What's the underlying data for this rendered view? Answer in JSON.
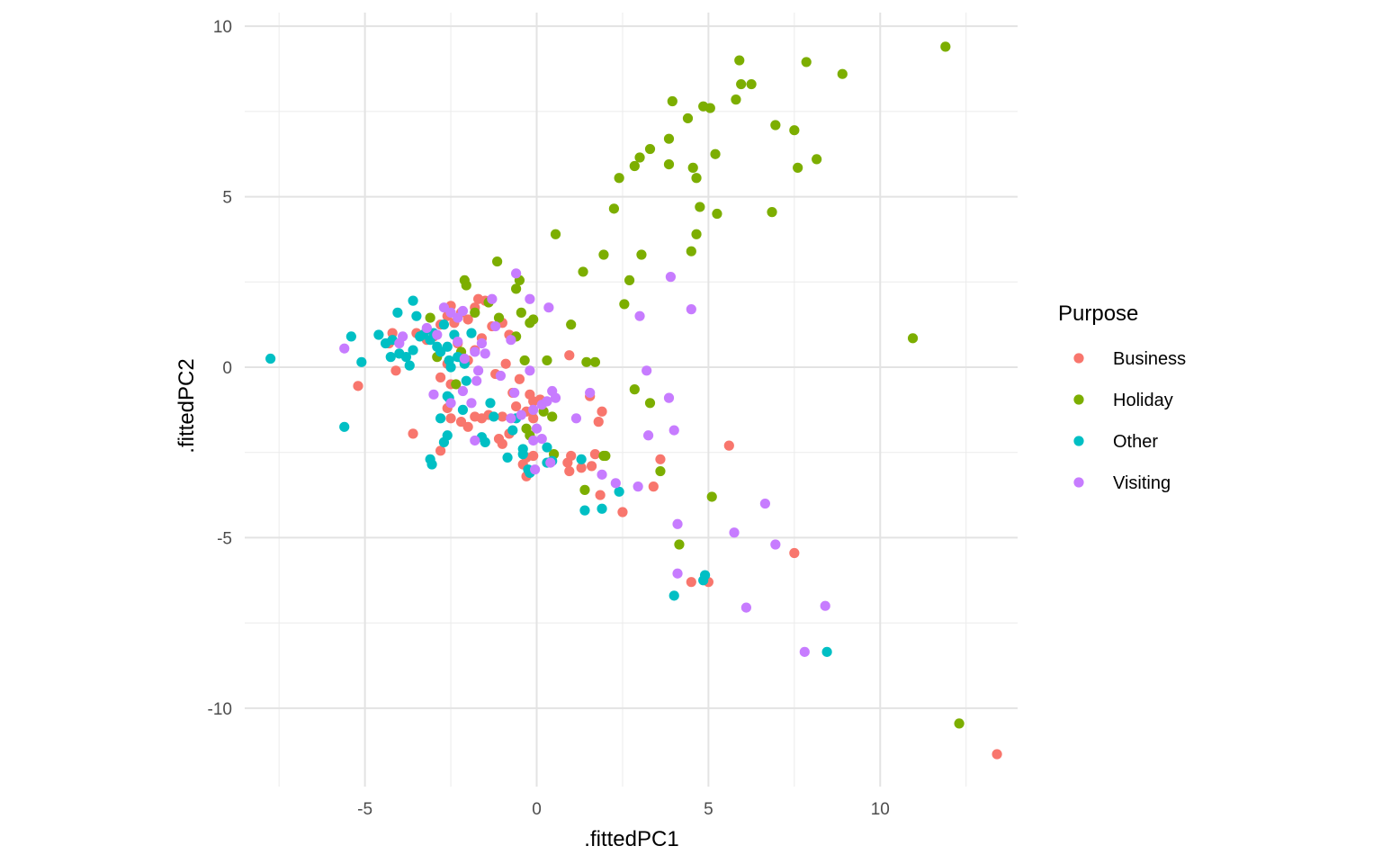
{
  "chart_data": {
    "type": "scatter",
    "xlabel": ".fittedPC1",
    "ylabel": ".fittedPC2",
    "xlim": [
      -8.5,
      14
    ],
    "ylim": [
      -12.3,
      10.4
    ],
    "x_ticks": [
      -5,
      0,
      5,
      10
    ],
    "y_ticks": [
      10,
      5,
      0,
      -5,
      -10
    ],
    "x_tick_labels": [
      "-5",
      "0",
      "5",
      "10"
    ],
    "y_tick_labels": [
      "10",
      "5",
      "0",
      "-5",
      "-10"
    ],
    "grid": true,
    "legend": {
      "title": "Purpose",
      "placement": "right"
    },
    "series": [
      {
        "name": "Business",
        "color": "#F8766D",
        "points": [
          [
            -5.2,
            -0.55
          ],
          [
            -3.6,
            -1.95
          ],
          [
            -4.2,
            1.0
          ],
          [
            -4.1,
            -0.1
          ],
          [
            -4.3,
            0.7
          ],
          [
            -3.5,
            1.0
          ],
          [
            -3.2,
            0.8
          ],
          [
            -3.0,
            0.9
          ],
          [
            -2.8,
            1.25
          ],
          [
            -2.6,
            1.5
          ],
          [
            -2.5,
            1.8
          ],
          [
            -2.4,
            1.3
          ],
          [
            -2.2,
            1.6
          ],
          [
            -2.0,
            1.4
          ],
          [
            -1.8,
            1.75
          ],
          [
            -1.7,
            2.0
          ],
          [
            -1.5,
            1.95
          ],
          [
            -2.3,
            0.7
          ],
          [
            -2.0,
            0.2
          ],
          [
            -1.8,
            0.5
          ],
          [
            -1.6,
            0.85
          ],
          [
            -1.3,
            1.2
          ],
          [
            -1.0,
            1.3
          ],
          [
            -0.8,
            0.95
          ],
          [
            -0.9,
            0.1
          ],
          [
            -1.2,
            -0.2
          ],
          [
            -0.7,
            -0.75
          ],
          [
            -0.5,
            -0.35
          ],
          [
            -0.2,
            -0.8
          ],
          [
            -0.1,
            -1.0
          ],
          [
            0.1,
            -0.95
          ],
          [
            -0.3,
            -1.3
          ],
          [
            -0.1,
            -1.5
          ],
          [
            -0.6,
            -1.15
          ],
          [
            -1.0,
            -1.45
          ],
          [
            -1.4,
            -1.4
          ],
          [
            -1.6,
            -1.5
          ],
          [
            -1.8,
            -1.45
          ],
          [
            -2.0,
            -1.75
          ],
          [
            -2.2,
            -1.6
          ],
          [
            -2.5,
            -1.5
          ],
          [
            -2.6,
            -1.2
          ],
          [
            -2.8,
            -0.3
          ],
          [
            -2.6,
            0.1
          ],
          [
            -2.5,
            -0.5
          ],
          [
            -1.1,
            -2.1
          ],
          [
            -0.8,
            -1.95
          ],
          [
            -1.0,
            -2.25
          ],
          [
            -0.3,
            -2.65
          ],
          [
            -0.4,
            -2.85
          ],
          [
            -0.3,
            -3.2
          ],
          [
            -0.1,
            -2.6
          ],
          [
            0.9,
            -2.8
          ],
          [
            1.0,
            -2.6
          ],
          [
            0.95,
            -3.05
          ],
          [
            1.3,
            -2.95
          ],
          [
            1.6,
            -2.9
          ],
          [
            1.7,
            -2.55
          ],
          [
            1.8,
            -1.6
          ],
          [
            1.9,
            -1.3
          ],
          [
            1.55,
            -0.85
          ],
          [
            0.95,
            0.35
          ],
          [
            2.5,
            -4.25
          ],
          [
            3.6,
            -2.7
          ],
          [
            3.4,
            -3.5
          ],
          [
            1.85,
            -3.75
          ],
          [
            4.5,
            -6.3
          ],
          [
            5.0,
            -6.3
          ],
          [
            5.6,
            -2.3
          ],
          [
            7.5,
            -5.45
          ],
          [
            13.4,
            -11.35
          ],
          [
            -2.8,
            -2.45
          ]
        ]
      },
      {
        "name": "Holiday",
        "color": "#7CAE00",
        "points": [
          [
            -3.1,
            1.45
          ],
          [
            -2.9,
            0.3
          ],
          [
            -2.1,
            2.55
          ],
          [
            -2.05,
            2.4
          ],
          [
            -1.8,
            1.6
          ],
          [
            -1.4,
            1.9
          ],
          [
            -1.15,
            3.1
          ],
          [
            -1.1,
            1.45
          ],
          [
            -0.6,
            2.3
          ],
          [
            -0.5,
            2.55
          ],
          [
            -0.45,
            1.6
          ],
          [
            -0.2,
            1.3
          ],
          [
            -0.1,
            1.4
          ],
          [
            -0.35,
            0.2
          ],
          [
            0.3,
            0.2
          ],
          [
            -0.6,
            0.9
          ],
          [
            0.55,
            3.9
          ],
          [
            1.0,
            1.25
          ],
          [
            1.35,
            2.8
          ],
          [
            1.45,
            0.15
          ],
          [
            1.7,
            0.15
          ],
          [
            1.95,
            3.3
          ],
          [
            2.25,
            4.65
          ],
          [
            2.4,
            5.55
          ],
          [
            2.55,
            1.85
          ],
          [
            2.7,
            2.55
          ],
          [
            2.85,
            -0.65
          ],
          [
            2.85,
            5.9
          ],
          [
            3.0,
            6.15
          ],
          [
            3.05,
            3.3
          ],
          [
            3.3,
            6.4
          ],
          [
            3.3,
            -1.05
          ],
          [
            3.6,
            -3.05
          ],
          [
            3.85,
            6.7
          ],
          [
            3.85,
            5.95
          ],
          [
            3.95,
            7.8
          ],
          [
            4.4,
            7.3
          ],
          [
            4.5,
            3.4
          ],
          [
            4.55,
            5.85
          ],
          [
            4.65,
            5.55
          ],
          [
            4.65,
            3.9
          ],
          [
            4.75,
            4.7
          ],
          [
            4.85,
            7.65
          ],
          [
            5.05,
            7.6
          ],
          [
            5.1,
            -3.8
          ],
          [
            5.2,
            6.25
          ],
          [
            5.25,
            4.5
          ],
          [
            5.8,
            7.85
          ],
          [
            5.9,
            9.0
          ],
          [
            5.95,
            8.3
          ],
          [
            6.25,
            8.3
          ],
          [
            6.85,
            4.55
          ],
          [
            6.95,
            7.1
          ],
          [
            7.5,
            6.95
          ],
          [
            7.6,
            5.85
          ],
          [
            7.85,
            8.95
          ],
          [
            8.15,
            6.1
          ],
          [
            8.9,
            8.6
          ],
          [
            10.95,
            0.85
          ],
          [
            11.9,
            9.4
          ],
          [
            12.3,
            -10.45
          ],
          [
            4.15,
            -5.2
          ],
          [
            1.4,
            -3.6
          ],
          [
            1.95,
            -2.6
          ],
          [
            2.0,
            -2.6
          ],
          [
            0.5,
            -2.55
          ],
          [
            0.45,
            -1.45
          ],
          [
            0.2,
            -1.3
          ],
          [
            -0.2,
            -2.0
          ],
          [
            -0.3,
            -1.8
          ],
          [
            -2.2,
            0.45
          ],
          [
            -2.35,
            -0.5
          ]
        ]
      },
      {
        "name": "Other",
        "color": "#00BFC4",
        "points": [
          [
            -7.75,
            0.25
          ],
          [
            -5.6,
            -1.75
          ],
          [
            -5.4,
            0.9
          ],
          [
            -5.1,
            0.15
          ],
          [
            -4.6,
            0.95
          ],
          [
            -4.4,
            0.7
          ],
          [
            -4.25,
            0.3
          ],
          [
            -4.2,
            0.8
          ],
          [
            -4.05,
            1.6
          ],
          [
            -4.0,
            0.4
          ],
          [
            -3.8,
            0.3
          ],
          [
            -3.7,
            0.05
          ],
          [
            -3.6,
            1.95
          ],
          [
            -3.5,
            1.5
          ],
          [
            -3.6,
            0.5
          ],
          [
            -3.4,
            0.9
          ],
          [
            -3.3,
            0.95
          ],
          [
            -3.2,
            1.1
          ],
          [
            -3.1,
            0.8
          ],
          [
            -2.9,
            0.6
          ],
          [
            -2.8,
            0.45
          ],
          [
            -2.7,
            1.25
          ],
          [
            -2.55,
            0.2
          ],
          [
            -2.5,
            0.0
          ],
          [
            -2.4,
            0.95
          ],
          [
            -2.3,
            0.3
          ],
          [
            -2.1,
            0.1
          ],
          [
            -2.05,
            -0.4
          ],
          [
            -2.15,
            0.25
          ],
          [
            -2.15,
            -1.25
          ],
          [
            -1.9,
            1.0
          ],
          [
            -1.6,
            -2.05
          ],
          [
            -1.5,
            -2.2
          ],
          [
            -1.35,
            -1.05
          ],
          [
            -1.25,
            -1.45
          ],
          [
            -2.55,
            -0.9
          ],
          [
            -2.6,
            -0.85
          ],
          [
            -2.8,
            -1.5
          ],
          [
            -2.6,
            -2.0
          ],
          [
            -2.7,
            -2.2
          ],
          [
            -3.1,
            -2.7
          ],
          [
            -3.05,
            -2.85
          ],
          [
            -0.85,
            -2.65
          ],
          [
            -0.7,
            -1.85
          ],
          [
            -0.6,
            -1.5
          ],
          [
            -0.4,
            -2.4
          ],
          [
            -0.4,
            -2.55
          ],
          [
            -0.2,
            -3.1
          ],
          [
            -0.25,
            -3.0
          ],
          [
            0.3,
            -2.8
          ],
          [
            0.3,
            -2.35
          ],
          [
            0.45,
            -2.75
          ],
          [
            1.3,
            -2.7
          ],
          [
            1.4,
            -4.2
          ],
          [
            1.9,
            -4.15
          ],
          [
            2.4,
            -3.65
          ],
          [
            4.0,
            -6.7
          ],
          [
            4.85,
            -6.25
          ],
          [
            4.9,
            -6.1
          ],
          [
            8.45,
            -8.35
          ],
          [
            -2.6,
            0.6
          ],
          [
            -3.0,
            1.0
          ]
        ]
      },
      {
        "name": "Visiting",
        "color": "#C77CFF",
        "points": [
          [
            -5.6,
            0.55
          ],
          [
            -4.0,
            0.7
          ],
          [
            -3.9,
            0.9
          ],
          [
            -3.2,
            1.15
          ],
          [
            -2.9,
            0.95
          ],
          [
            -2.7,
            1.75
          ],
          [
            -2.5,
            1.6
          ],
          [
            -2.3,
            1.45
          ],
          [
            -2.15,
            1.65
          ],
          [
            -2.3,
            0.75
          ],
          [
            -2.1,
            0.25
          ],
          [
            -1.8,
            0.45
          ],
          [
            -1.6,
            0.7
          ],
          [
            -1.5,
            0.4
          ],
          [
            -1.3,
            2.0
          ],
          [
            -1.2,
            1.2
          ],
          [
            -0.75,
            0.8
          ],
          [
            -0.6,
            2.75
          ],
          [
            -0.2,
            2.0
          ],
          [
            0.35,
            1.75
          ],
          [
            -0.2,
            -0.1
          ],
          [
            -0.65,
            -0.75
          ],
          [
            -1.05,
            -0.25
          ],
          [
            -1.75,
            -0.4
          ],
          [
            -1.9,
            -1.05
          ],
          [
            -2.15,
            -0.7
          ],
          [
            -3.0,
            -0.8
          ],
          [
            -2.5,
            -1.05
          ],
          [
            -0.75,
            -1.5
          ],
          [
            -0.45,
            -1.4
          ],
          [
            -0.1,
            -1.25
          ],
          [
            0.15,
            -1.1
          ],
          [
            0.3,
            -1.0
          ],
          [
            0.45,
            -0.7
          ],
          [
            0.55,
            -0.9
          ],
          [
            0.0,
            -1.8
          ],
          [
            -0.1,
            -2.15
          ],
          [
            0.15,
            -2.1
          ],
          [
            0.4,
            -2.8
          ],
          [
            -0.05,
            -3.0
          ],
          [
            -1.8,
            -2.15
          ],
          [
            1.55,
            -0.75
          ],
          [
            1.15,
            -1.5
          ],
          [
            1.9,
            -3.15
          ],
          [
            2.3,
            -3.4
          ],
          [
            2.95,
            -3.5
          ],
          [
            3.0,
            1.5
          ],
          [
            3.2,
            -0.1
          ],
          [
            3.25,
            -2.0
          ],
          [
            3.9,
            2.65
          ],
          [
            3.85,
            -0.9
          ],
          [
            4.0,
            -1.85
          ],
          [
            4.1,
            -4.6
          ],
          [
            4.1,
            -6.05
          ],
          [
            4.5,
            1.7
          ],
          [
            5.75,
            -4.85
          ],
          [
            6.1,
            -7.05
          ],
          [
            6.65,
            -4.0
          ],
          [
            6.95,
            -5.2
          ],
          [
            7.8,
            -8.35
          ],
          [
            8.4,
            -7.0
          ],
          [
            -1.7,
            -0.1
          ]
        ]
      }
    ]
  }
}
